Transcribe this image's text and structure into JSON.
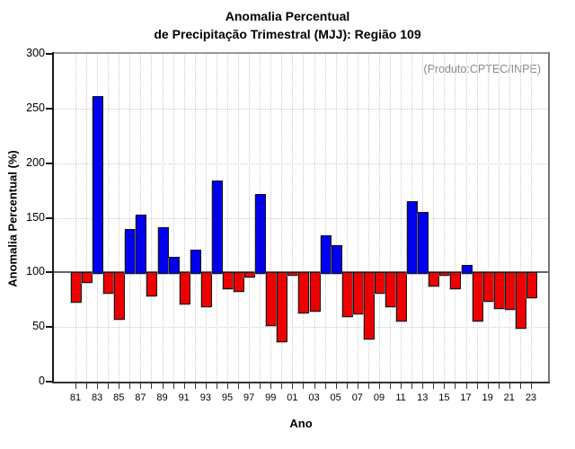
{
  "page": {
    "title_line1": "Anomalia Percentual",
    "title_line2": "de Precipitação Trimestral (MJJ): Região 109",
    "annotation": "(Produto:CPTEC/INPE)"
  },
  "chart_data": {
    "type": "bar",
    "title": "Anomalia Percentual de Precipitação Trimestral (MJJ): Região 109",
    "xlabel": "Ano",
    "ylabel": "Anomalia Percentual (%)",
    "ylim": [
      0,
      300
    ],
    "baseline": 100,
    "grid": "dotted",
    "legend": "none",
    "y_ticks": [
      0,
      50,
      100,
      150,
      200,
      250,
      300
    ],
    "x_tick_labels": [
      "81",
      "83",
      "85",
      "87",
      "89",
      "91",
      "93",
      "95",
      "97",
      "99",
      "01",
      "03",
      "05",
      "07",
      "09",
      "11",
      "13",
      "15",
      "17",
      "19",
      "21",
      "23"
    ],
    "categories": [
      1981,
      1982,
      1983,
      1984,
      1985,
      1986,
      1987,
      1988,
      1989,
      1990,
      1991,
      1992,
      1993,
      1994,
      1995,
      1996,
      1997,
      1998,
      1999,
      2000,
      2001,
      2002,
      2003,
      2004,
      2005,
      2006,
      2007,
      2008,
      2009,
      2010,
      2011,
      2012,
      2013,
      2014,
      2015,
      2016,
      2017,
      2018,
      2019,
      2020,
      2021,
      2022,
      2023
    ],
    "values": [
      74,
      92,
      261,
      82,
      58,
      140,
      153,
      80,
      141,
      114,
      72,
      121,
      70,
      184,
      86,
      84,
      97,
      172,
      53,
      38,
      99,
      64,
      66,
      134,
      125,
      61,
      63,
      40,
      82,
      70,
      57,
      165,
      155,
      89,
      99,
      86,
      107,
      57,
      75,
      68,
      67,
      50,
      78
    ],
    "colors": {
      "above_baseline": "#0000EE",
      "below_baseline": "#EE0000",
      "bar_outline": "#161616",
      "grid": "#cccccc",
      "baseline_line": "#666666",
      "frame_dark": "#1a1a1a",
      "frame_light": "#999999",
      "annotation_text": "#8a8a8a"
    }
  }
}
